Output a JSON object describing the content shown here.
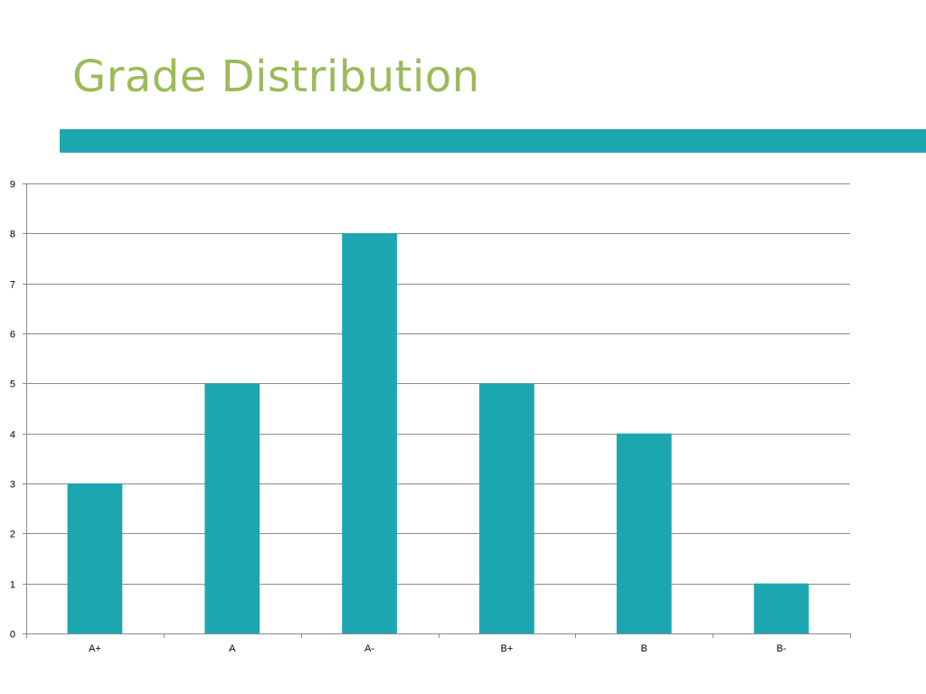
{
  "slide": {
    "title": "Grade Distribution"
  },
  "colors": {
    "title": "#9bbb59",
    "accent_bar": "#1ca7b0",
    "bar": "#1ca7b0",
    "gridline": "#8c8c8c",
    "axis": "#8c8c8c"
  },
  "chart_data": {
    "type": "bar",
    "categories": [
      "A+",
      "A",
      "A-",
      "B+",
      "B",
      "B-"
    ],
    "values": [
      3,
      5,
      8,
      5,
      4,
      1
    ],
    "title": "",
    "xlabel": "",
    "ylabel": "",
    "ylim": [
      0,
      9
    ],
    "yticks": [
      "0",
      "1",
      "2",
      "3",
      "4",
      "5",
      "6",
      "7",
      "8",
      "9"
    ],
    "grid": true,
    "legend": "none"
  }
}
